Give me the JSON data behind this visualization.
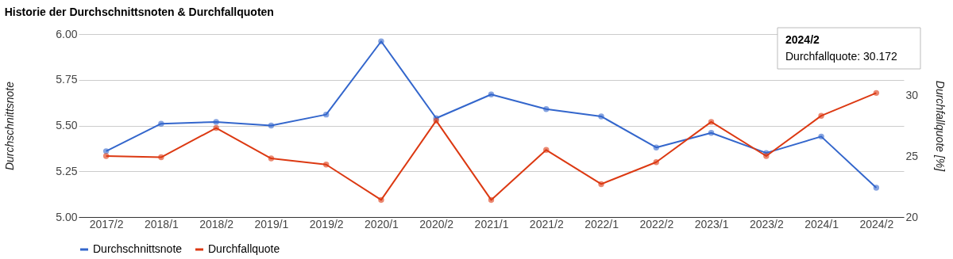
{
  "chart_data": {
    "type": "line",
    "title": "Historie der Durchschnittsnoten & Durchfallquoten",
    "ylabel": "Durchschnittsnote",
    "y2label": "Durchfallquote [%]",
    "categories": [
      "2017/2",
      "2018/1",
      "2018/2",
      "2019/1",
      "2019/2",
      "2020/1",
      "2020/2",
      "2021/1",
      "2021/2",
      "2022/1",
      "2022/2",
      "2023/1",
      "2023/2",
      "2024/1",
      "2024/2"
    ],
    "series": [
      {
        "name": "Durchschnittsnote",
        "color": "#3366cc",
        "values": [
          5.36,
          5.51,
          5.52,
          5.5,
          5.56,
          5.96,
          5.54,
          5.67,
          5.59,
          5.55,
          5.38,
          5.46,
          5.35,
          5.44,
          5.16
        ]
      },
      {
        "name": "Durchfallquote",
        "color": "#dc3912",
        "axis": "y2",
        "values": [
          25.0,
          24.9,
          27.3,
          24.8,
          24.3,
          21.4,
          27.9,
          21.4,
          25.5,
          22.7,
          24.5,
          27.8,
          25.0,
          28.3,
          30.172
        ]
      }
    ],
    "ylim": [
      5.0,
      6.0
    ],
    "yticks": [
      {
        "value": 5.0,
        "label": "5.00"
      },
      {
        "value": 5.25,
        "label": "5.25"
      },
      {
        "value": 5.5,
        "label": "5.50"
      },
      {
        "value": 5.75,
        "label": "5.75"
      },
      {
        "value": 6.0,
        "label": "6.00"
      }
    ],
    "y2lim": [
      20,
      35
    ],
    "y2ticks": [
      20,
      25,
      30
    ],
    "annotations": [
      "2024/2\nDurchfallquote: 30.172"
    ],
    "grid": "y",
    "legend": "bottom",
    "marker": "circle",
    "line_style": "solid"
  }
}
